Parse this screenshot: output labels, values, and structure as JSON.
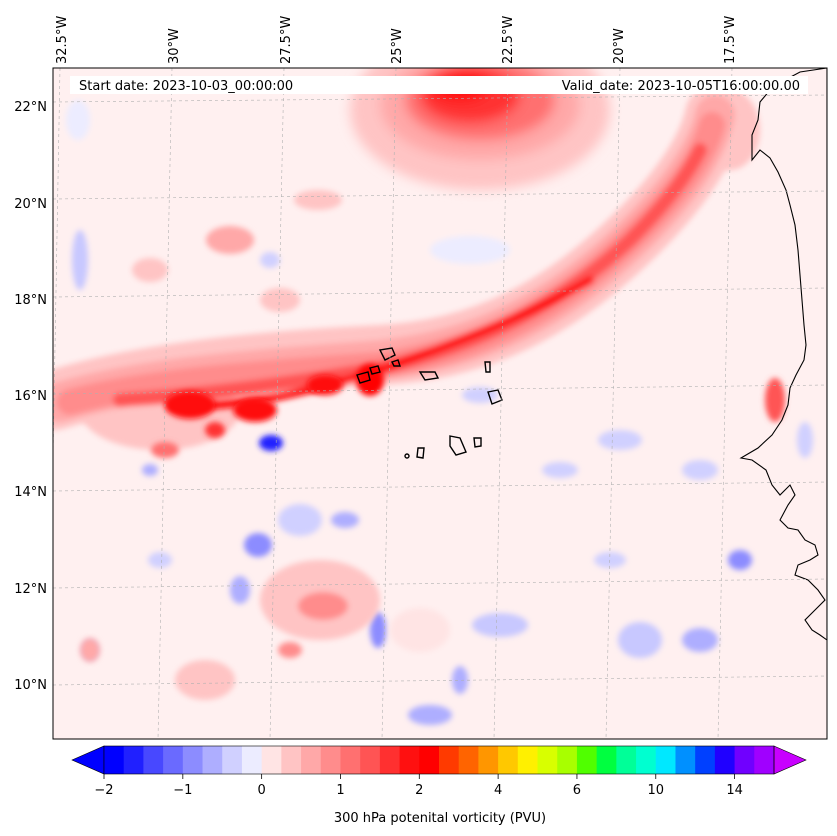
{
  "map": {
    "header_left": "Start date: 2023-10-03_00:00:00",
    "header_right": "Valid_date: 2023-10-05T16:00:00.00",
    "longitude_ticks": [
      "32.5°W",
      "30°W",
      "27.5°W",
      "25°W",
      "22.5°W",
      "20°W",
      "17.5°W"
    ],
    "latitude_ticks": [
      "22°N",
      "20°N",
      "18°N",
      "16°N",
      "14°N",
      "12°N",
      "10°N"
    ],
    "lon_range": [
      -32.5,
      -15.0
    ],
    "lat_range": [
      8.9,
      22.8
    ],
    "variable_field": "300 hPa potential vorticity",
    "field_units": "PVU"
  },
  "colorbar": {
    "label": "300 hPa potenital vorticity (PVU)",
    "tick_labels": [
      "−2",
      "−1",
      "0",
      "1",
      "2",
      "4",
      "6",
      "10",
      "14"
    ],
    "colors": [
      "#0000ff",
      "#2020ff",
      "#4848ff",
      "#6a6aff",
      "#8c8cff",
      "#aeaeff",
      "#d0d0ff",
      "#ececff",
      "#ffe4e4",
      "#ffc4c4",
      "#ffa8a8",
      "#ff8c8c",
      "#ff7070",
      "#ff5454",
      "#ff3030",
      "#ff1010",
      "#ff0000",
      "#ff3a00",
      "#ff6400",
      "#ff9600",
      "#ffc800",
      "#fff000",
      "#d8ff00",
      "#a8ff00",
      "#50ff00",
      "#00ff40",
      "#00ff98",
      "#00ffd0",
      "#00e8ff",
      "#0090ff",
      "#0040ff",
      "#2000ff",
      "#7000ff",
      "#a000ff"
    ],
    "extend_low": "#0000ff",
    "extend_high": "#c800ff"
  }
}
